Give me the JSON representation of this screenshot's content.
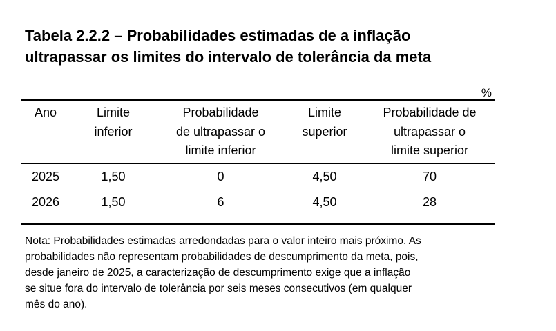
{
  "title_line1": "Tabela 2.2.2 – Probabilidades estimadas de a inflação",
  "title_line2": "ultrapassar os limites do intervalo de tolerância da meta",
  "unit": "%",
  "table": {
    "headers": {
      "ano": "Ano",
      "limite_inferior": [
        "Limite",
        "inferior"
      ],
      "prob_inferior": [
        "Probabilidade",
        "de ultrapassar o",
        "limite inferior"
      ],
      "limite_superior": [
        "Limite",
        "superior"
      ],
      "prob_superior": [
        "Probabilidade de",
        "ultrapassar o",
        "limite superior"
      ]
    },
    "rows": [
      {
        "ano": "2025",
        "limite_inferior": "1,50",
        "prob_inferior": "0",
        "limite_superior": "4,50",
        "prob_superior": "70"
      },
      {
        "ano": "2026",
        "limite_inferior": "1,50",
        "prob_inferior": "6",
        "limite_superior": "4,50",
        "prob_superior": "28"
      }
    ]
  },
  "note": {
    "line1": "Nota: Probabilidades estimadas arredondadas para o valor inteiro mais próximo. As",
    "line2": "probabilidades não representam probabilidades de descumprimento da meta, pois,",
    "line3": "desde janeiro de 2025, a caracterização de descumprimento exige que a inflação",
    "line4": "se situe fora do intervalo de tolerância por seis meses consecutivos (em qualquer",
    "line5": "mês do ano)."
  }
}
